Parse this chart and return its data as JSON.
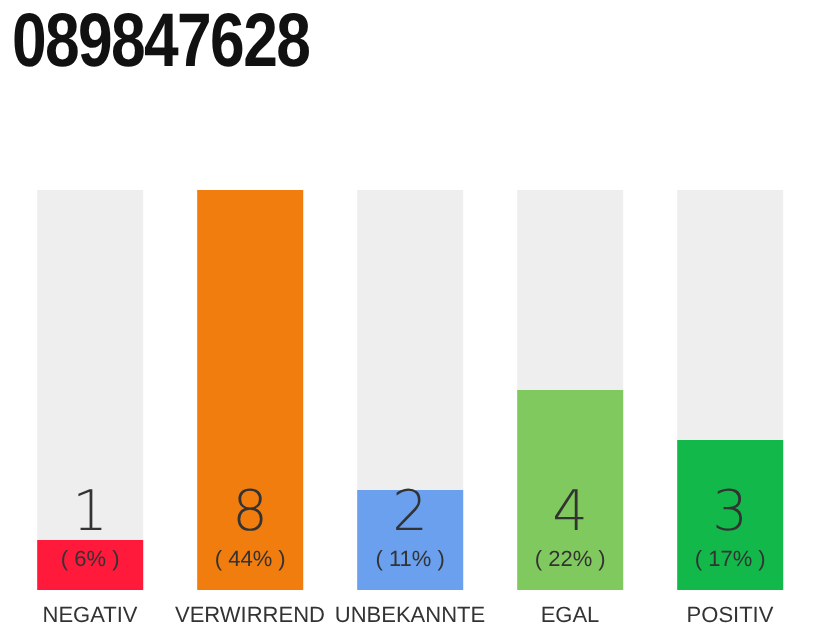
{
  "chart_data": {
    "type": "bar",
    "title": "089847628",
    "categories": [
      "NEGATIV",
      "VERWIRREND",
      "UNBEKANNTE",
      "EGAL",
      "POSITIV"
    ],
    "values": [
      1,
      8,
      2,
      4,
      3
    ],
    "colors": [
      "#ff1a3c",
      "#f07d0e",
      "#6aa0ee",
      "#80c95f",
      "#12b84a"
    ],
    "data_labels": true,
    "annotations": [
      "( 6% )",
      "( 44% )",
      "( 11% )",
      "( 22% )",
      "( 17% )"
    ]
  }
}
